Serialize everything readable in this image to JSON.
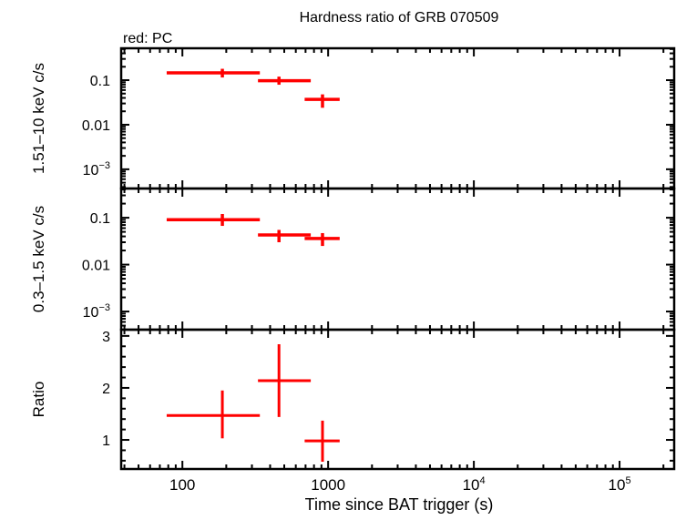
{
  "chart_data": {
    "type": "scatter",
    "title": "Hardness ratio of GRB 070509",
    "subtitle": "red: PC",
    "xlabel": "Time since BAT trigger (s)",
    "xscale": "log",
    "xlim": [
      38,
      237000
    ],
    "x_ticks": [
      {
        "value": 100,
        "label": "100"
      },
      {
        "value": 1000,
        "label": "1000"
      },
      {
        "value": 10000,
        "label": "10",
        "exp": "4"
      },
      {
        "value": 100000,
        "label": "10",
        "exp": "5"
      }
    ],
    "series_color": "#ff0000",
    "panels": [
      {
        "name": "hard",
        "ylabel": "1.51–10 keV c/s",
        "yscale": "log",
        "ylim": [
          0.00037,
          0.52
        ],
        "y_ticks": [
          {
            "value": 0.1,
            "label": "0.1"
          },
          {
            "value": 0.01,
            "label": "0.01"
          },
          {
            "value": 0.001,
            "label": "10",
            "exp": "−3"
          }
        ],
        "points": [
          {
            "x": 188,
            "xlo": 78,
            "xhi": 340,
            "y": 0.146,
            "ylo": 0.115,
            "yhi": 0.18
          },
          {
            "x": 460,
            "xlo": 330,
            "xhi": 760,
            "y": 0.097,
            "ylo": 0.079,
            "yhi": 0.12
          },
          {
            "x": 915,
            "xlo": 690,
            "xhi": 1200,
            "y": 0.037,
            "ylo": 0.024,
            "yhi": 0.048
          }
        ]
      },
      {
        "name": "soft",
        "ylabel": "0.3–1.5 keV c/s",
        "yscale": "log",
        "ylim": [
          0.00041,
          0.42
        ],
        "y_ticks": [
          {
            "value": 0.1,
            "label": "0.1"
          },
          {
            "value": 0.01,
            "label": "0.01"
          },
          {
            "value": 0.001,
            "label": "10",
            "exp": "−3"
          }
        ],
        "points": [
          {
            "x": 188,
            "xlo": 78,
            "xhi": 340,
            "y": 0.091,
            "ylo": 0.067,
            "yhi": 0.12
          },
          {
            "x": 460,
            "xlo": 330,
            "xhi": 760,
            "y": 0.043,
            "ylo": 0.03,
            "yhi": 0.055
          },
          {
            "x": 915,
            "xlo": 690,
            "xhi": 1200,
            "y": 0.036,
            "ylo": 0.025,
            "yhi": 0.047
          }
        ]
      },
      {
        "name": "ratio",
        "ylabel": "Ratio",
        "yscale": "linear",
        "ylim": [
          0.44,
          3.12
        ],
        "y_ticks": [
          {
            "value": 1,
            "label": "1"
          },
          {
            "value": 2,
            "label": "2"
          },
          {
            "value": 3,
            "label": "3"
          }
        ],
        "points": [
          {
            "x": 188,
            "xlo": 78,
            "xhi": 340,
            "y": 1.47,
            "ylo": 1.03,
            "yhi": 1.95
          },
          {
            "x": 460,
            "xlo": 330,
            "xhi": 760,
            "y": 2.14,
            "ylo": 1.44,
            "yhi": 2.84
          },
          {
            "x": 915,
            "xlo": 690,
            "xhi": 1200,
            "y": 0.98,
            "ylo": 0.58,
            "yhi": 1.37
          }
        ]
      }
    ]
  }
}
